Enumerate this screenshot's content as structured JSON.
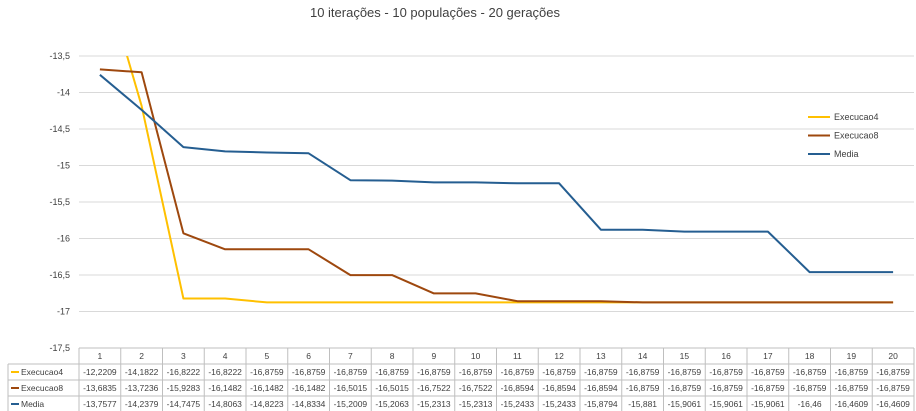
{
  "chart_data": {
    "type": "line",
    "title": "10 iterações - 10 populações - 20 gerações",
    "xlabel": "",
    "ylabel": "",
    "ylim": [
      -17.5,
      -13.5
    ],
    "yticks": [
      "-13,5",
      "-14",
      "-14,5",
      "-15",
      "-15,5",
      "-16",
      "-16,5",
      "-17",
      "-17,5"
    ],
    "categories": [
      "1",
      "2",
      "3",
      "4",
      "5",
      "6",
      "7",
      "8",
      "9",
      "10",
      "11",
      "12",
      "13",
      "14",
      "15",
      "16",
      "17",
      "18",
      "19",
      "20"
    ],
    "grid": "horizontal",
    "legend_position": "right",
    "series": [
      {
        "name": "Execucao4",
        "color": "#ffc000",
        "values": [
          -12.2209,
          -14.1822,
          -16.8222,
          -16.8222,
          -16.8759,
          -16.8759,
          -16.8759,
          -16.8759,
          -16.8759,
          -16.8759,
          -16.8759,
          -16.8759,
          -16.8759,
          -16.8759,
          -16.8759,
          -16.8759,
          -16.8759,
          -16.8759,
          -16.8759,
          -16.8759
        ],
        "labels": [
          "-12,2209",
          "-14,1822",
          "-16,8222",
          "-16,8222",
          "-16,8759",
          "-16,8759",
          "-16,8759",
          "-16,8759",
          "-16,8759",
          "-16,8759",
          "-16,8759",
          "-16,8759",
          "-16,8759",
          "-16,8759",
          "-16,8759",
          "-16,8759",
          "-16,8759",
          "-16,8759",
          "-16,8759",
          "-16,8759"
        ]
      },
      {
        "name": "Execucao8",
        "color": "#9e480e",
        "values": [
          -13.6835,
          -13.7236,
          -15.9283,
          -16.1482,
          -16.1482,
          -16.1482,
          -16.5015,
          -16.5015,
          -16.7522,
          -16.7522,
          -16.8594,
          -16.8594,
          -16.8594,
          -16.8759,
          -16.8759,
          -16.8759,
          -16.8759,
          -16.8759,
          -16.8759,
          -16.8759
        ],
        "labels": [
          "-13,6835",
          "-13,7236",
          "-15,9283",
          "-16,1482",
          "-16,1482",
          "-16,1482",
          "-16,5015",
          "-16,5015",
          "-16,7522",
          "-16,7522",
          "-16,8594",
          "-16,8594",
          "-16,8594",
          "-16,8759",
          "-16,8759",
          "-16,8759",
          "-16,8759",
          "-16,8759",
          "-16,8759",
          "-16,8759"
        ]
      },
      {
        "name": "Media",
        "color": "#255e91",
        "values": [
          -13.7577,
          -14.2379,
          -14.7475,
          -14.8063,
          -14.8223,
          -14.8334,
          -15.2009,
          -15.2063,
          -15.2313,
          -15.2313,
          -15.2433,
          -15.2433,
          -15.8794,
          -15.881,
          -15.9061,
          -15.9061,
          -15.9061,
          -16.46,
          -16.4609,
          -16.4609
        ],
        "labels": [
          "-13,7577",
          "-14,2379",
          "-14,7475",
          "-14,8063",
          "-14,8223",
          "-14,8334",
          "-15,2009",
          "-15,2063",
          "-15,2313",
          "-15,2313",
          "-15,2433",
          "-15,2433",
          "-15,8794",
          "-15,881",
          "-15,9061",
          "-15,9061",
          "-15,9061",
          "-16,46",
          "-16,4609",
          "-16,4609"
        ]
      }
    ]
  }
}
